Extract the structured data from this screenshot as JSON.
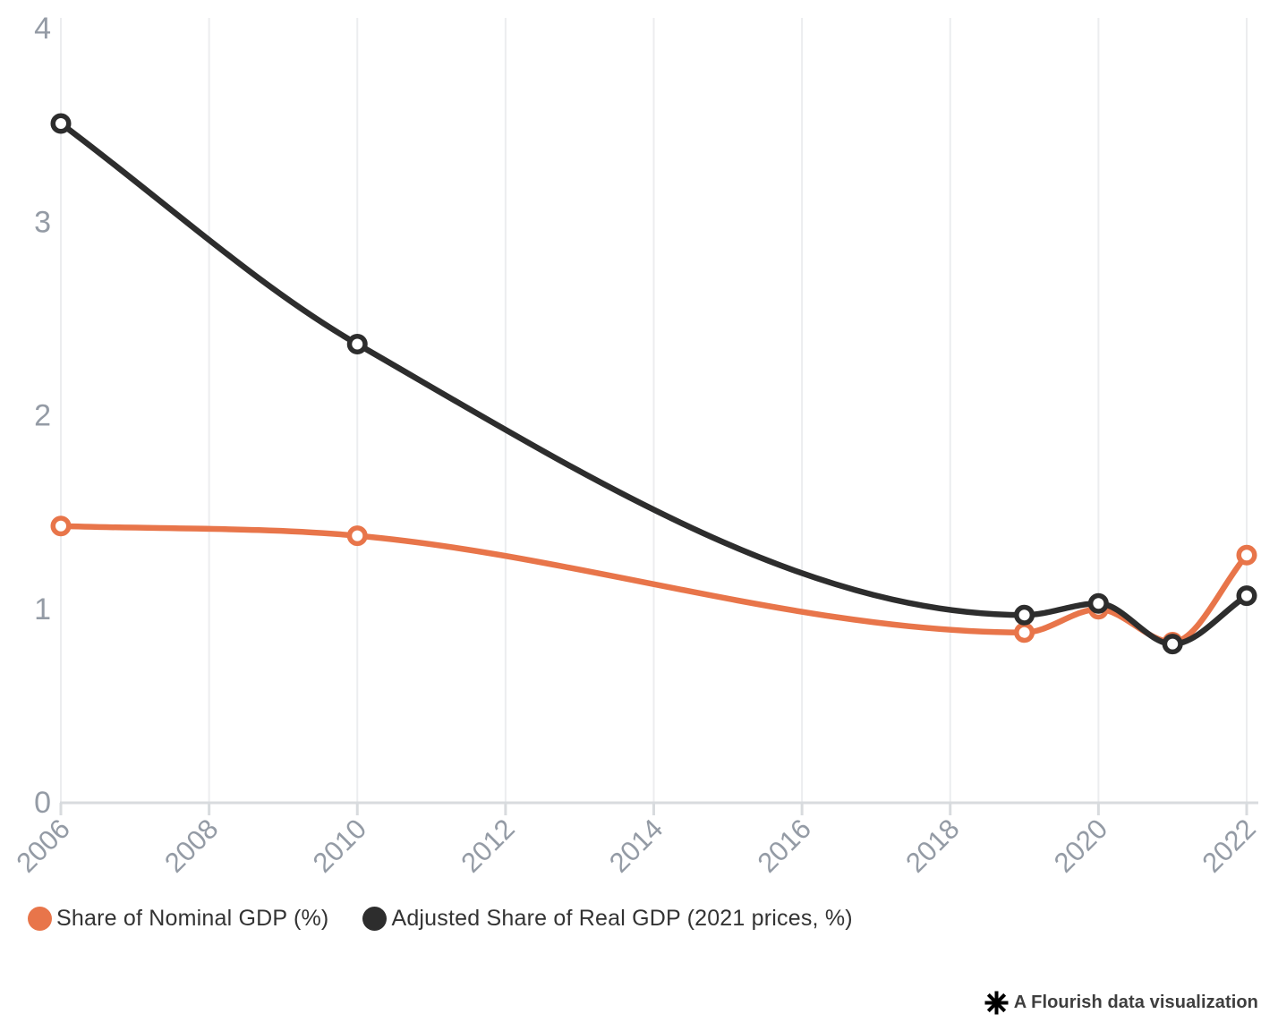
{
  "chart_data": {
    "type": "line",
    "x": [
      2006,
      2010,
      2019,
      2020,
      2021,
      2022
    ],
    "series": [
      {
        "name": "Share of Nominal GDP (%)",
        "color": "#E8754A",
        "values": [
          1.43,
          1.38,
          0.88,
          1.0,
          0.83,
          1.28
        ]
      },
      {
        "name": "Adjusted Share of Real GDP (2021 prices, %)",
        "color": "#2D2D2D",
        "values": [
          3.51,
          2.37,
          0.97,
          1.03,
          0.82,
          1.07
        ]
      }
    ],
    "title": "",
    "xlabel": "",
    "ylabel": "",
    "xlim": [
      2006,
      2022
    ],
    "ylim": [
      0,
      4
    ],
    "x_ticks": [
      2006,
      2008,
      2010,
      2012,
      2014,
      2016,
      2018,
      2020,
      2022
    ],
    "y_ticks": [
      0,
      1,
      2,
      3,
      4
    ],
    "grid": "vertical-only",
    "legend_position": "bottom-left",
    "marker": "open-circle",
    "curve": "smooth-monotone"
  },
  "colors": {
    "background": "#FFFFFF",
    "grid": "#ECEDEF",
    "axis_line": "#D8DBDE",
    "axis_text": "#949BA5",
    "legend_text": "#333333",
    "footer_text": "#3E3E3E",
    "footer_logo": "#000000"
  },
  "footer": {
    "attribution": "A Flourish data visualization",
    "logo_icon": "flourish-asterisk-icon"
  }
}
